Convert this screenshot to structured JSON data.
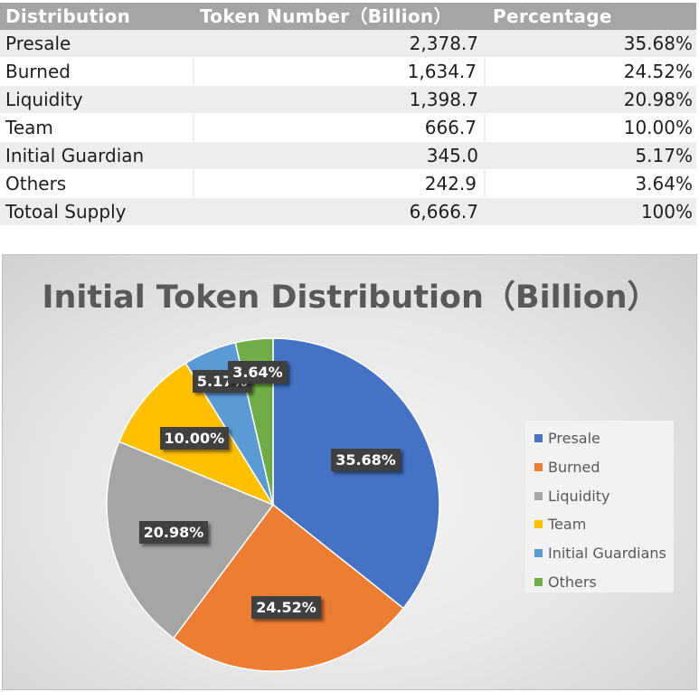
{
  "table": {
    "headers": [
      "Distribution",
      "Token Number（Billion）",
      "Percentage"
    ],
    "rows": [
      [
        "Presale",
        "2,378.7",
        "35.68%"
      ],
      [
        "Burned",
        "1,634.7",
        "24.52%"
      ],
      [
        "Liquidity",
        "1,398.7",
        "20.98%"
      ],
      [
        "Team",
        "666.7",
        "10.00%"
      ],
      [
        "Initial Guardian",
        "345.0",
        "5.17%"
      ],
      [
        "Others",
        "242.9",
        "3.64%"
      ],
      [
        "Totoal Supply",
        "6,666.7",
        "100%"
      ]
    ]
  },
  "chart_data": {
    "type": "pie",
    "title": "Initial Token Distribution（Billion）",
    "categories": [
      "Presale",
      "Burned",
      "Liquidity",
      "Team",
      "Initial Guardians",
      "Others"
    ],
    "values": [
      35.68,
      24.52,
      20.98,
      10.0,
      5.17,
      3.64
    ],
    "data_labels": [
      "35.68%",
      "24.52%",
      "20.98%",
      "10.00%",
      "5.17%",
      "3.64%"
    ],
    "colors": [
      "#4472c4",
      "#ed7d31",
      "#a5a5a5",
      "#ffc000",
      "#5b9bd5",
      "#70ad47"
    ],
    "start_angle_deg": 0,
    "direction": "clockwise",
    "legend_position": "right"
  }
}
